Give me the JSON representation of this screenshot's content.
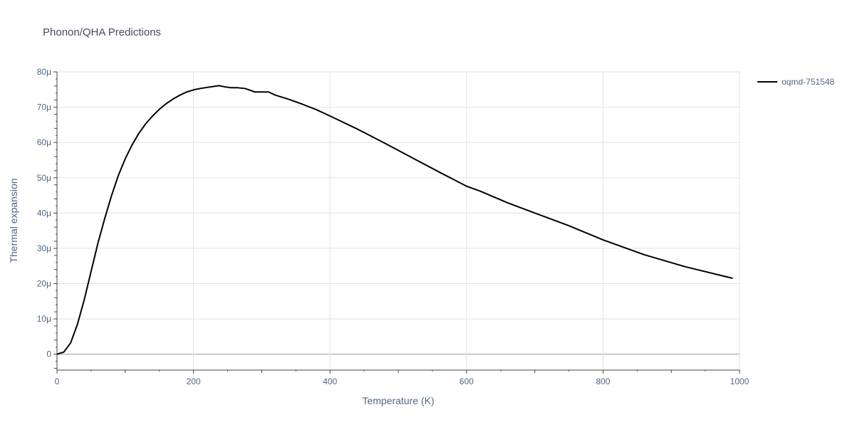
{
  "chart_data": {
    "type": "line",
    "title": "Phonon/QHA Predictions",
    "xlabel": "Temperature (K)",
    "ylabel": "Thermal expansion",
    "xlim": [
      0,
      1000
    ],
    "ylim": [
      -4.5,
      80
    ],
    "x_ticks": [
      0,
      200,
      400,
      600,
      800,
      1000
    ],
    "x_tick_labels": [
      "0",
      "200",
      "400",
      "600",
      "800",
      "1000"
    ],
    "y_ticks": [
      0,
      10,
      20,
      30,
      40,
      50,
      60,
      70,
      80
    ],
    "y_tick_labels": [
      "0",
      "10μ",
      "20μ",
      "30μ",
      "40μ",
      "50μ",
      "60μ",
      "70μ",
      "80μ"
    ],
    "grid": true,
    "legend_position": "top-right",
    "series": [
      {
        "name": "oqmd-751548",
        "color": "#000000",
        "x": [
          0,
          10,
          20,
          30,
          40,
          50,
          60,
          70,
          80,
          90,
          100,
          110,
          120,
          130,
          140,
          150,
          160,
          170,
          180,
          190,
          200,
          210,
          220,
          230,
          237,
          245,
          255,
          265,
          275,
          280,
          290,
          300,
          310,
          320,
          340,
          360,
          380,
          400,
          440,
          480,
          520,
          560,
          600,
          620,
          660,
          700,
          750,
          800,
          860,
          920,
          990
        ],
        "y": [
          0,
          0.6,
          3.2,
          8.5,
          15.5,
          23.5,
          31.5,
          38.5,
          45,
          50.7,
          55.4,
          59.3,
          62.6,
          65.3,
          67.5,
          69.4,
          71,
          72.3,
          73.4,
          74.3,
          74.9,
          75.3,
          75.6,
          75.9,
          76.1,
          75.8,
          75.5,
          75.5,
          75.3,
          75,
          74.3,
          74.3,
          74.3,
          73.4,
          72.2,
          70.8,
          69.3,
          67.5,
          63.8,
          59.8,
          55.7,
          51.6,
          47.6,
          46.2,
          42.9,
          40,
          36.4,
          32.4,
          28.2,
          24.8,
          21.5
        ]
      }
    ]
  }
}
